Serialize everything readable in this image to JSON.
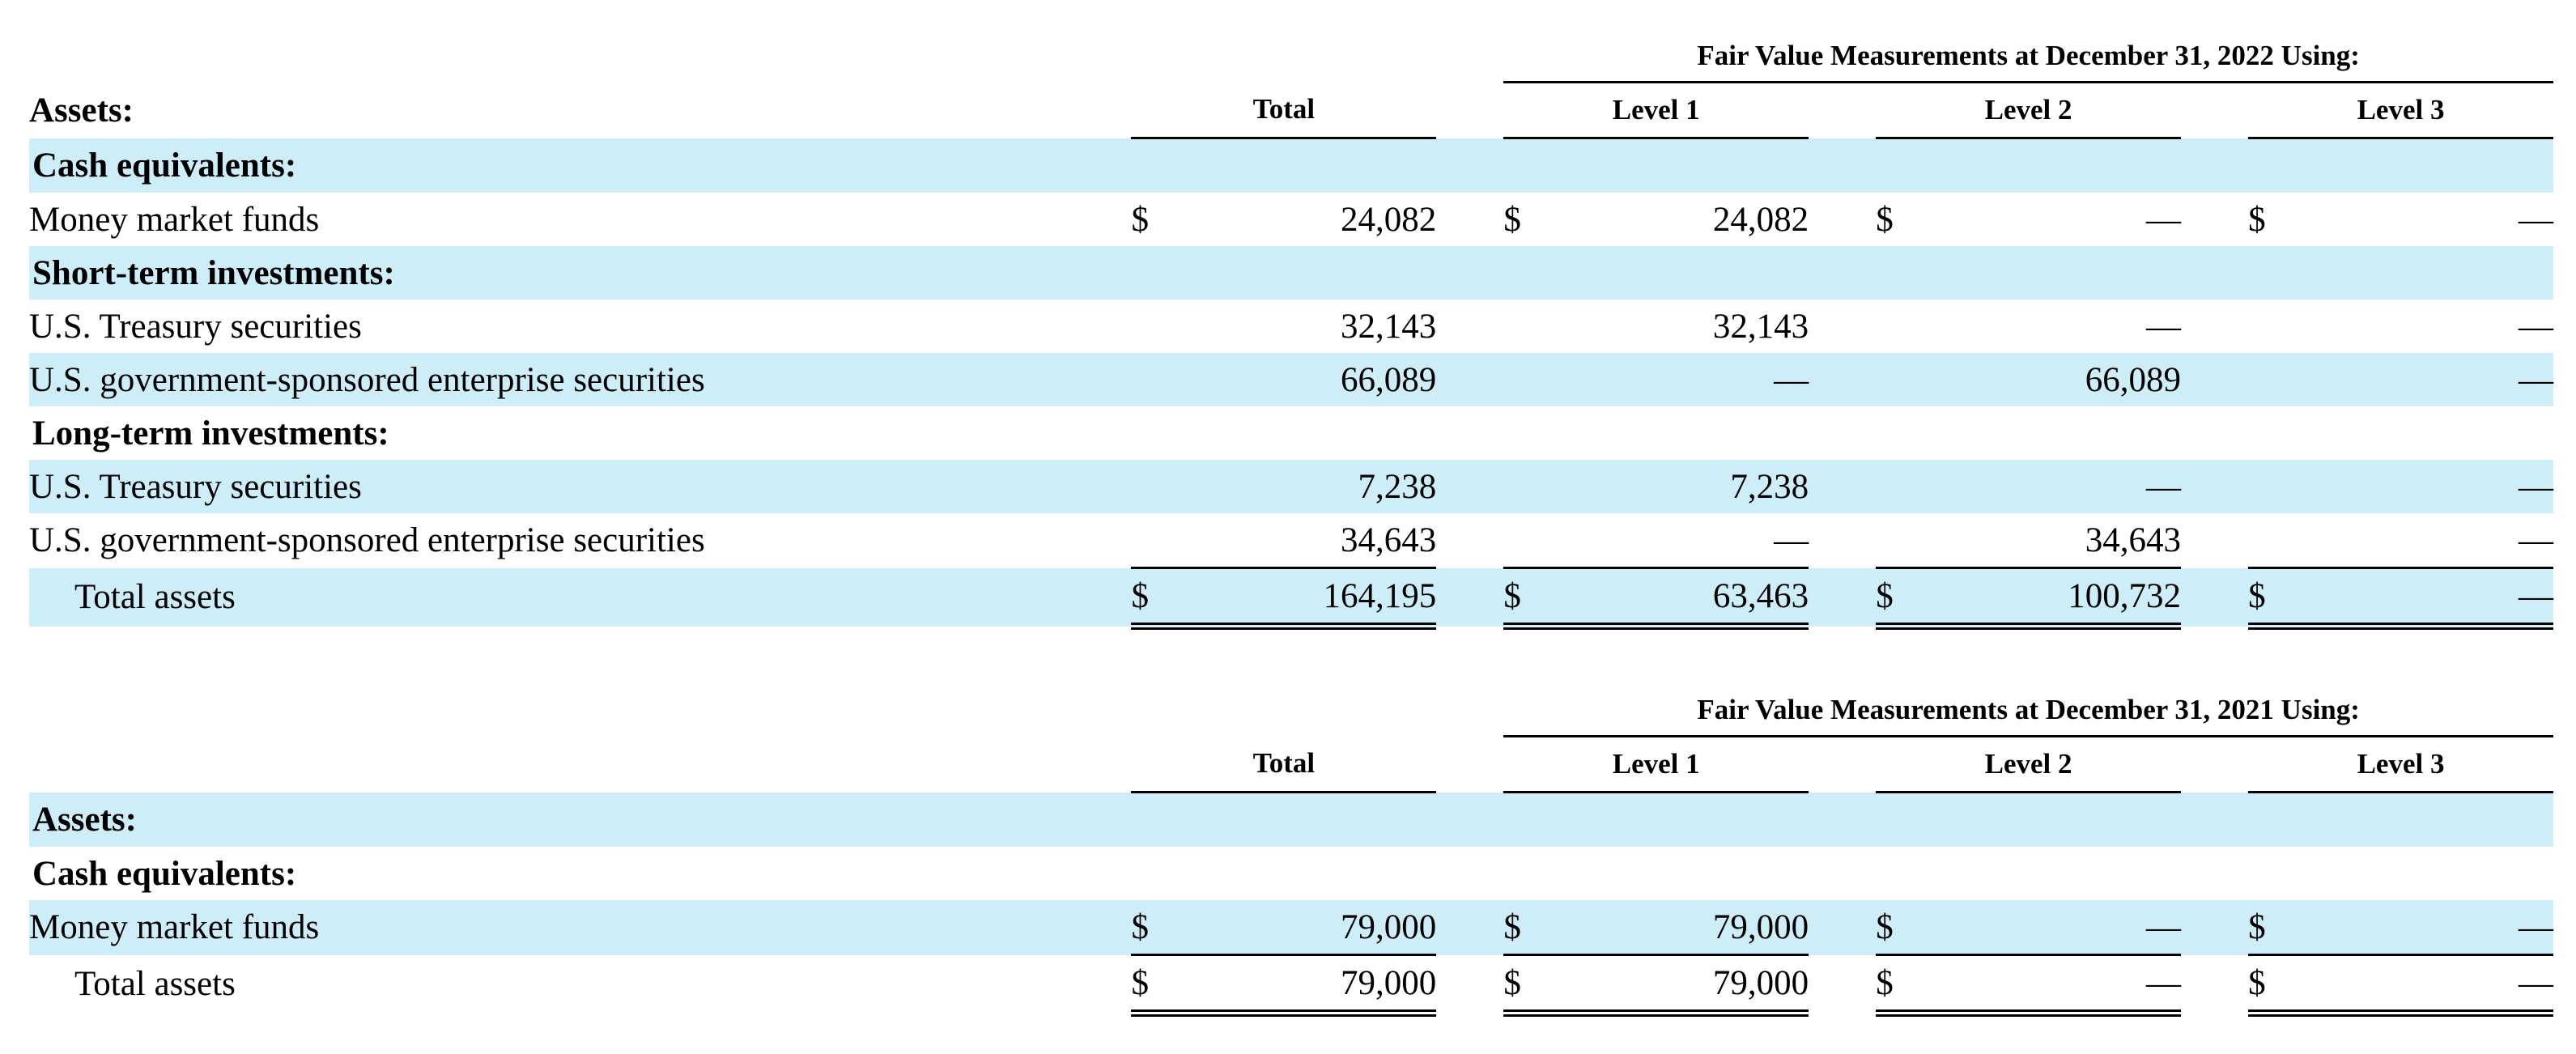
{
  "dash": "—",
  "currency": "$",
  "table2022": {
    "span_header": "Fair Value Measurements at December 31, 2022 Using:",
    "assets_label": "Assets:",
    "col_headers": [
      "Total",
      "Level 1",
      "Level 2",
      "Level 3"
    ],
    "rows": [
      {
        "label": "Cash equivalents:"
      },
      {
        "label": "Money market funds",
        "values": [
          "24,082",
          "24,082",
          "—",
          "—"
        ]
      },
      {
        "label": "Short-term investments:"
      },
      {
        "label": "U.S. Treasury securities",
        "values": [
          "32,143",
          "32,143",
          "—",
          "—"
        ]
      },
      {
        "label": "U.S. government-sponsored enterprise securities",
        "values": [
          "66,089",
          "—",
          "66,089",
          "—"
        ]
      },
      {
        "label": "Long-term investments:"
      },
      {
        "label": "U.S. Treasury securities",
        "values": [
          "7,238",
          "7,238",
          "—",
          "—"
        ]
      },
      {
        "label": "U.S. government-sponsored enterprise securities",
        "values": [
          "34,643",
          "—",
          "34,643",
          "—"
        ]
      },
      {
        "label": "Total assets",
        "values": [
          "164,195",
          "63,463",
          "100,732",
          "—"
        ]
      }
    ]
  },
  "table2021": {
    "span_header": "Fair Value Measurements at December 31, 2021 Using:",
    "col_headers": [
      "Total",
      "Level 1",
      "Level 2",
      "Level 3"
    ],
    "rows": [
      {
        "label": "Assets:"
      },
      {
        "label": "Cash equivalents:"
      },
      {
        "label": "Money market funds",
        "values": [
          "79,000",
          "79,000",
          "—",
          "—"
        ]
      },
      {
        "label": "Total assets",
        "values": [
          "79,000",
          "79,000",
          "—",
          "—"
        ]
      }
    ]
  }
}
